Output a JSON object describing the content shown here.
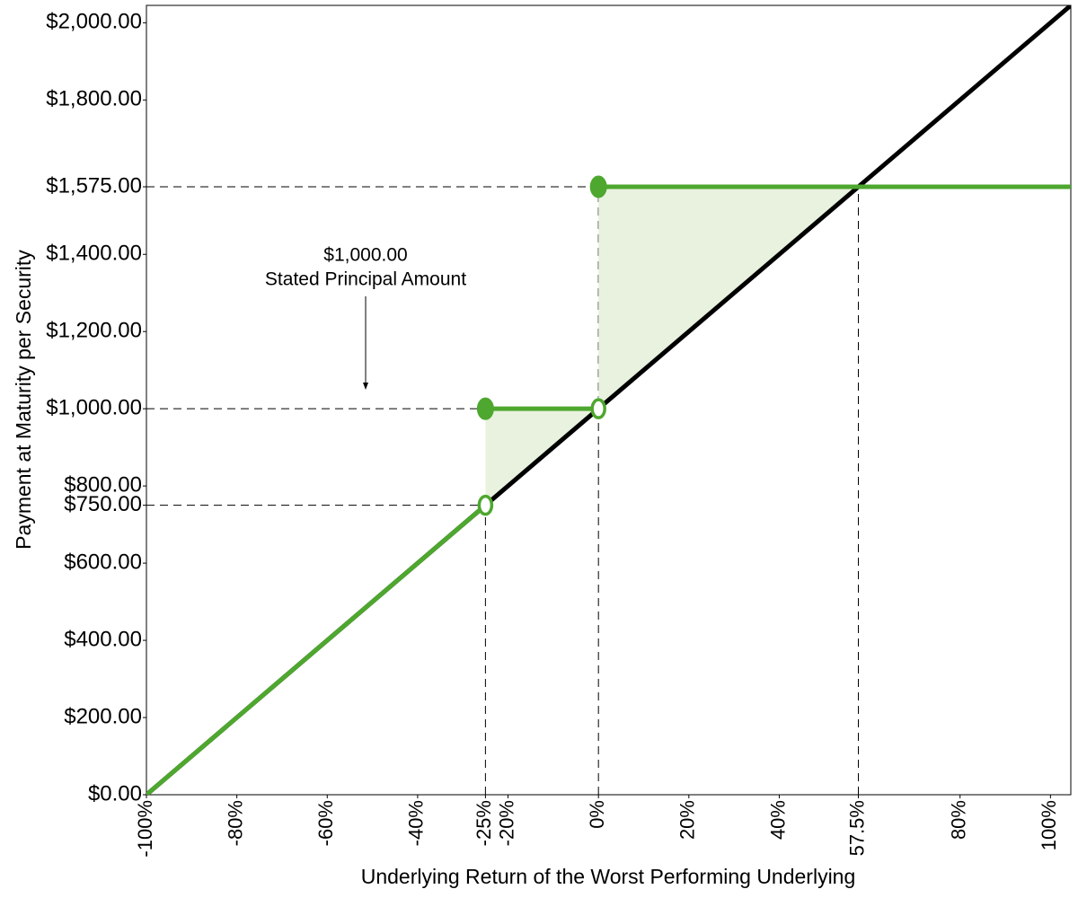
{
  "chart_data": {
    "type": "line",
    "x_label": "Underlying Return of the Worst Performing Underlying",
    "y_label": "Payment at Maturity per Security",
    "xlim": [
      -100,
      104.5
    ],
    "ylim": [
      0,
      2045
    ],
    "xticks": [
      {
        "value": -100,
        "label": "-100%"
      },
      {
        "value": -80,
        "label": "-80%"
      },
      {
        "value": -60,
        "label": "-60%"
      },
      {
        "value": -40,
        "label": "-40%"
      },
      {
        "value": -25,
        "label": "-25%"
      },
      {
        "value": -20,
        "label": "-20%"
      },
      {
        "value": 0,
        "label": "0%"
      },
      {
        "value": 20,
        "label": "20%"
      },
      {
        "value": 40,
        "label": "40%"
      },
      {
        "value": 57.5,
        "label": "57.5%"
      },
      {
        "value": 80,
        "label": "80%"
      },
      {
        "value": 100,
        "label": "100%"
      }
    ],
    "yticks": [
      {
        "value": 0,
        "label": "$0.00"
      },
      {
        "value": 200,
        "label": "$200.00"
      },
      {
        "value": 400,
        "label": "$400.00"
      },
      {
        "value": 600,
        "label": "$600.00"
      },
      {
        "value": 750,
        "label": "$750.00"
      },
      {
        "value": 800,
        "label": "$800.00"
      },
      {
        "value": 1000,
        "label": "$1,000.00"
      },
      {
        "value": 1200,
        "label": "$1,200.00"
      },
      {
        "value": 1400,
        "label": "$1,400.00"
      },
      {
        "value": 1575,
        "label": "$1,575.00"
      },
      {
        "value": 1800,
        "label": "$1,800.00"
      },
      {
        "value": 2000,
        "label": "$2,000.00"
      }
    ],
    "shaded_area": {
      "color": "#e8f2de",
      "x": [
        -25,
        0,
        0,
        57.5
      ],
      "upper": [
        1000,
        1000,
        1575,
        1575
      ],
      "lower": [
        750,
        1000,
        1000,
        1575
      ]
    },
    "series": [
      {
        "color": "#000000",
        "width": 5,
        "x": [
          -100,
          104.5
        ],
        "values": [
          0,
          2045
        ]
      },
      {
        "color": "#4ea72e",
        "width": 5,
        "x": [
          -100,
          -25,
          -25,
          -25,
          0,
          0,
          0,
          104.5
        ],
        "values": [
          0,
          750,
          null,
          1000,
          1000,
          null,
          1575,
          1575
        ]
      }
    ],
    "markers": [
      {
        "x": -25,
        "value": 1000,
        "filled": true,
        "color": "#4ea72e"
      },
      {
        "x": 0,
        "value": 1575,
        "filled": true,
        "color": "#4ea72e"
      },
      {
        "x": -25,
        "value": 750,
        "filled": false,
        "color": "#4ea72e"
      },
      {
        "x": 0,
        "value": 1000,
        "filled": false,
        "color": "#4ea72e"
      }
    ],
    "reference_lines": [
      {
        "x": [
          -100,
          0
        ],
        "values": [
          1575,
          1575
        ]
      },
      {
        "x": [
          -100,
          -25
        ],
        "values": [
          1000,
          1000
        ]
      },
      {
        "x": [
          -100,
          -25
        ],
        "values": [
          750,
          750
        ]
      },
      {
        "x": [
          -25,
          -25
        ],
        "values": [
          0,
          750
        ]
      },
      {
        "x": [
          0,
          0
        ],
        "values": [
          0,
          1575
        ]
      },
      {
        "x": [
          57.5,
          57.5
        ],
        "values": [
          0,
          1575
        ]
      }
    ],
    "annotation": {
      "lines": [
        "$1,000.00",
        "Stated Principal Amount"
      ]
    }
  }
}
